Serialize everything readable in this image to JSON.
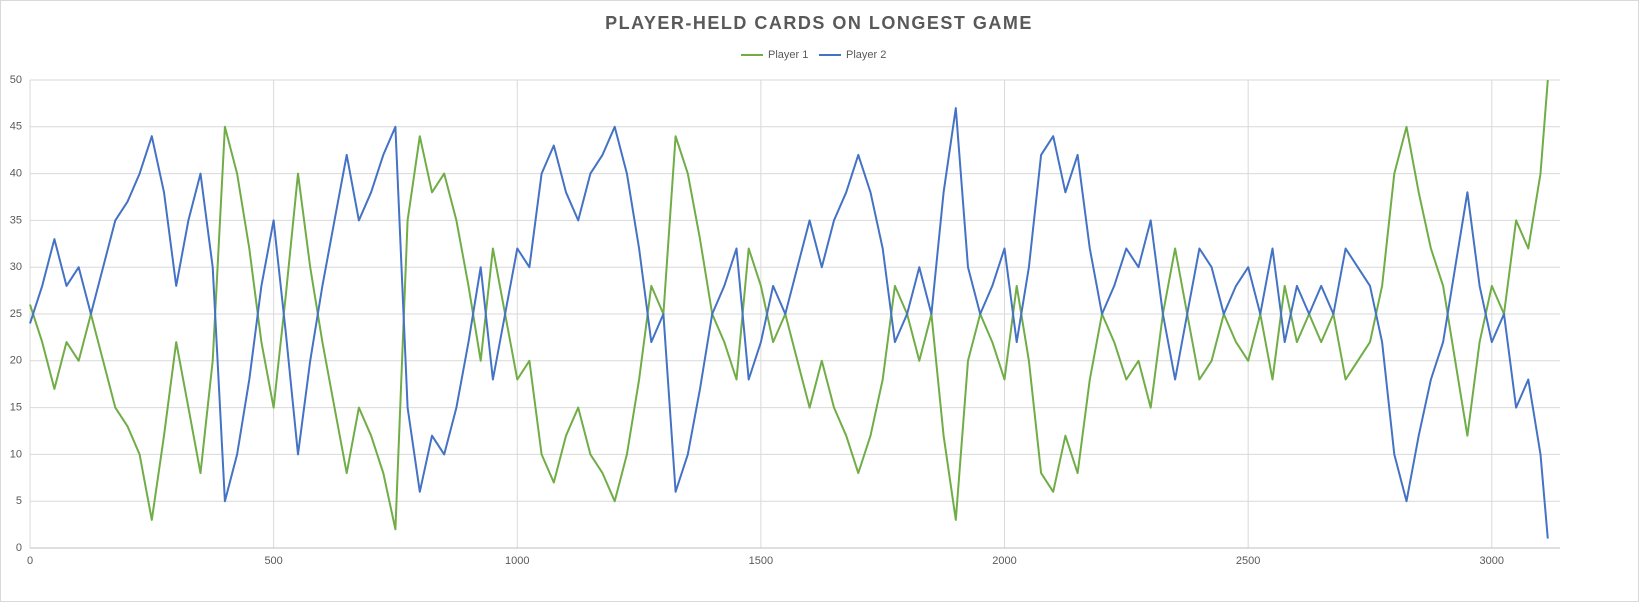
{
  "chart_data": {
    "type": "line",
    "title": "PLAYER-HELD CARDS ON LONGEST GAME",
    "x": [
      0,
      25,
      50,
      75,
      100,
      125,
      150,
      175,
      200,
      225,
      250,
      275,
      300,
      325,
      350,
      375,
      400,
      425,
      450,
      475,
      500,
      525,
      550,
      575,
      600,
      625,
      650,
      675,
      700,
      725,
      750,
      775,
      800,
      825,
      850,
      875,
      900,
      925,
      950,
      975,
      1000,
      1025,
      1050,
      1075,
      1100,
      1125,
      1150,
      1175,
      1200,
      1225,
      1250,
      1275,
      1300,
      1325,
      1350,
      1375,
      1400,
      1425,
      1450,
      1475,
      1500,
      1525,
      1550,
      1575,
      1600,
      1625,
      1650,
      1675,
      1700,
      1725,
      1750,
      1775,
      1800,
      1825,
      1850,
      1875,
      1900,
      1925,
      1950,
      1975,
      2000,
      2025,
      2050,
      2075,
      2100,
      2125,
      2150,
      2175,
      2200,
      2225,
      2250,
      2275,
      2300,
      2325,
      2350,
      2375,
      2400,
      2425,
      2450,
      2475,
      2500,
      2525,
      2550,
      2575,
      2600,
      2625,
      2650,
      2675,
      2700,
      2725,
      2750,
      2775,
      2800,
      2825,
      2850,
      2875,
      2900,
      2925,
      2950,
      2975,
      3000,
      3025,
      3050,
      3075,
      3100,
      3115
    ],
    "series": [
      {
        "name": "Player 1",
        "color": "#70ad47",
        "values": [
          26,
          22,
          17,
          22,
          20,
          25,
          20,
          15,
          13,
          10,
          3,
          12,
          22,
          15,
          8,
          20,
          45,
          40,
          32,
          22,
          15,
          27,
          40,
          30,
          22,
          15,
          8,
          15,
          12,
          8,
          2,
          35,
          44,
          38,
          40,
          35,
          28,
          20,
          32,
          25,
          18,
          20,
          10,
          7,
          12,
          15,
          10,
          8,
          5,
          10,
          18,
          28,
          25,
          44,
          40,
          33,
          25,
          22,
          18,
          32,
          28,
          22,
          25,
          20,
          15,
          20,
          15,
          12,
          8,
          12,
          18,
          28,
          25,
          20,
          25,
          12,
          3,
          20,
          25,
          22,
          18,
          28,
          20,
          8,
          6,
          12,
          8,
          18,
          25,
          22,
          18,
          20,
          15,
          25,
          32,
          25,
          18,
          20,
          25,
          22,
          20,
          25,
          18,
          28,
          22,
          25,
          22,
          25,
          18,
          20,
          22,
          28,
          40,
          45,
          38,
          32,
          28,
          20,
          12,
          22,
          28,
          25,
          35,
          32,
          40,
          50
        ]
      },
      {
        "name": "Player 2",
        "color": "#4472c4",
        "values": [
          24,
          28,
          33,
          28,
          30,
          25,
          30,
          35,
          37,
          40,
          44,
          38,
          28,
          35,
          40,
          30,
          5,
          10,
          18,
          28,
          35,
          23,
          10,
          20,
          28,
          35,
          42,
          35,
          38,
          42,
          45,
          15,
          6,
          12,
          10,
          15,
          22,
          30,
          18,
          25,
          32,
          30,
          40,
          43,
          38,
          35,
          40,
          42,
          45,
          40,
          32,
          22,
          25,
          6,
          10,
          17,
          25,
          28,
          32,
          18,
          22,
          28,
          25,
          30,
          35,
          30,
          35,
          38,
          42,
          38,
          32,
          22,
          25,
          30,
          25,
          38,
          47,
          30,
          25,
          28,
          32,
          22,
          30,
          42,
          44,
          38,
          42,
          32,
          25,
          28,
          32,
          30,
          35,
          25,
          18,
          25,
          32,
          30,
          25,
          28,
          30,
          25,
          32,
          22,
          28,
          25,
          28,
          25,
          32,
          30,
          28,
          22,
          10,
          5,
          12,
          18,
          22,
          30,
          38,
          28,
          22,
          25,
          15,
          18,
          10,
          1
        ]
      }
    ],
    "xlim": [
      0,
      3140
    ],
    "ylim": [
      0,
      50
    ],
    "xticks": [
      0,
      500,
      1000,
      1500,
      2000,
      2500,
      3000
    ],
    "yticks": [
      0,
      5,
      10,
      15,
      20,
      25,
      30,
      35,
      40,
      45,
      50
    ],
    "grid": true,
    "legend": "top"
  }
}
